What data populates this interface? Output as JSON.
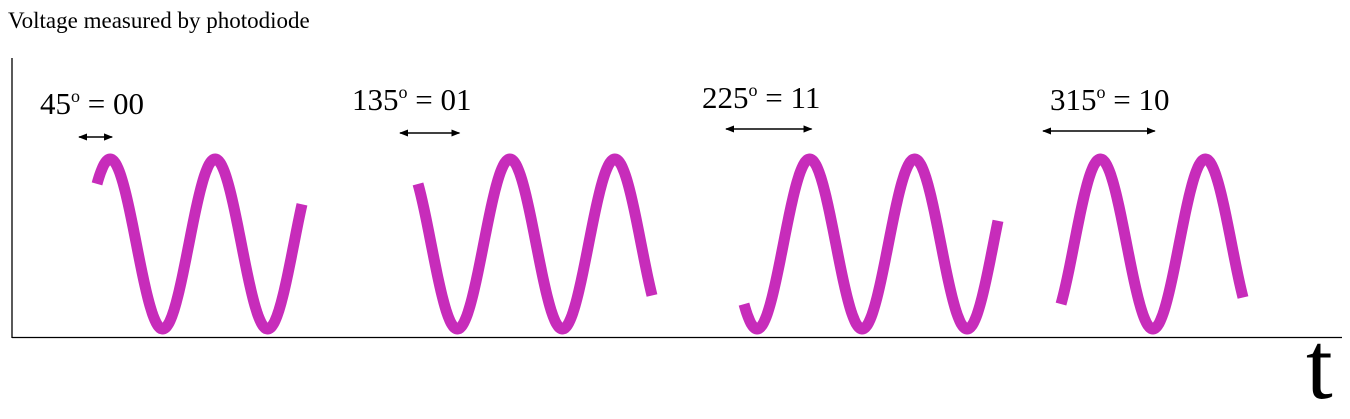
{
  "y_axis_label": "Voltage measured by photodiode",
  "x_axis_label": "t",
  "colors": {
    "wave": "#c72cba",
    "axis": "#000000"
  },
  "phases": [
    {
      "degrees": "45",
      "degree_mark": "o",
      "rest": " = 00",
      "phase_deg": 45
    },
    {
      "degrees": "135",
      "degree_mark": "o",
      "rest": " = 01",
      "phase_deg": 135
    },
    {
      "degrees": "225",
      "degree_mark": "o",
      "rest": " = 11",
      "phase_deg": 225
    },
    {
      "degrees": "315",
      "degree_mark": "o",
      "rest": " = 10",
      "phase_deg": 315
    }
  ]
}
